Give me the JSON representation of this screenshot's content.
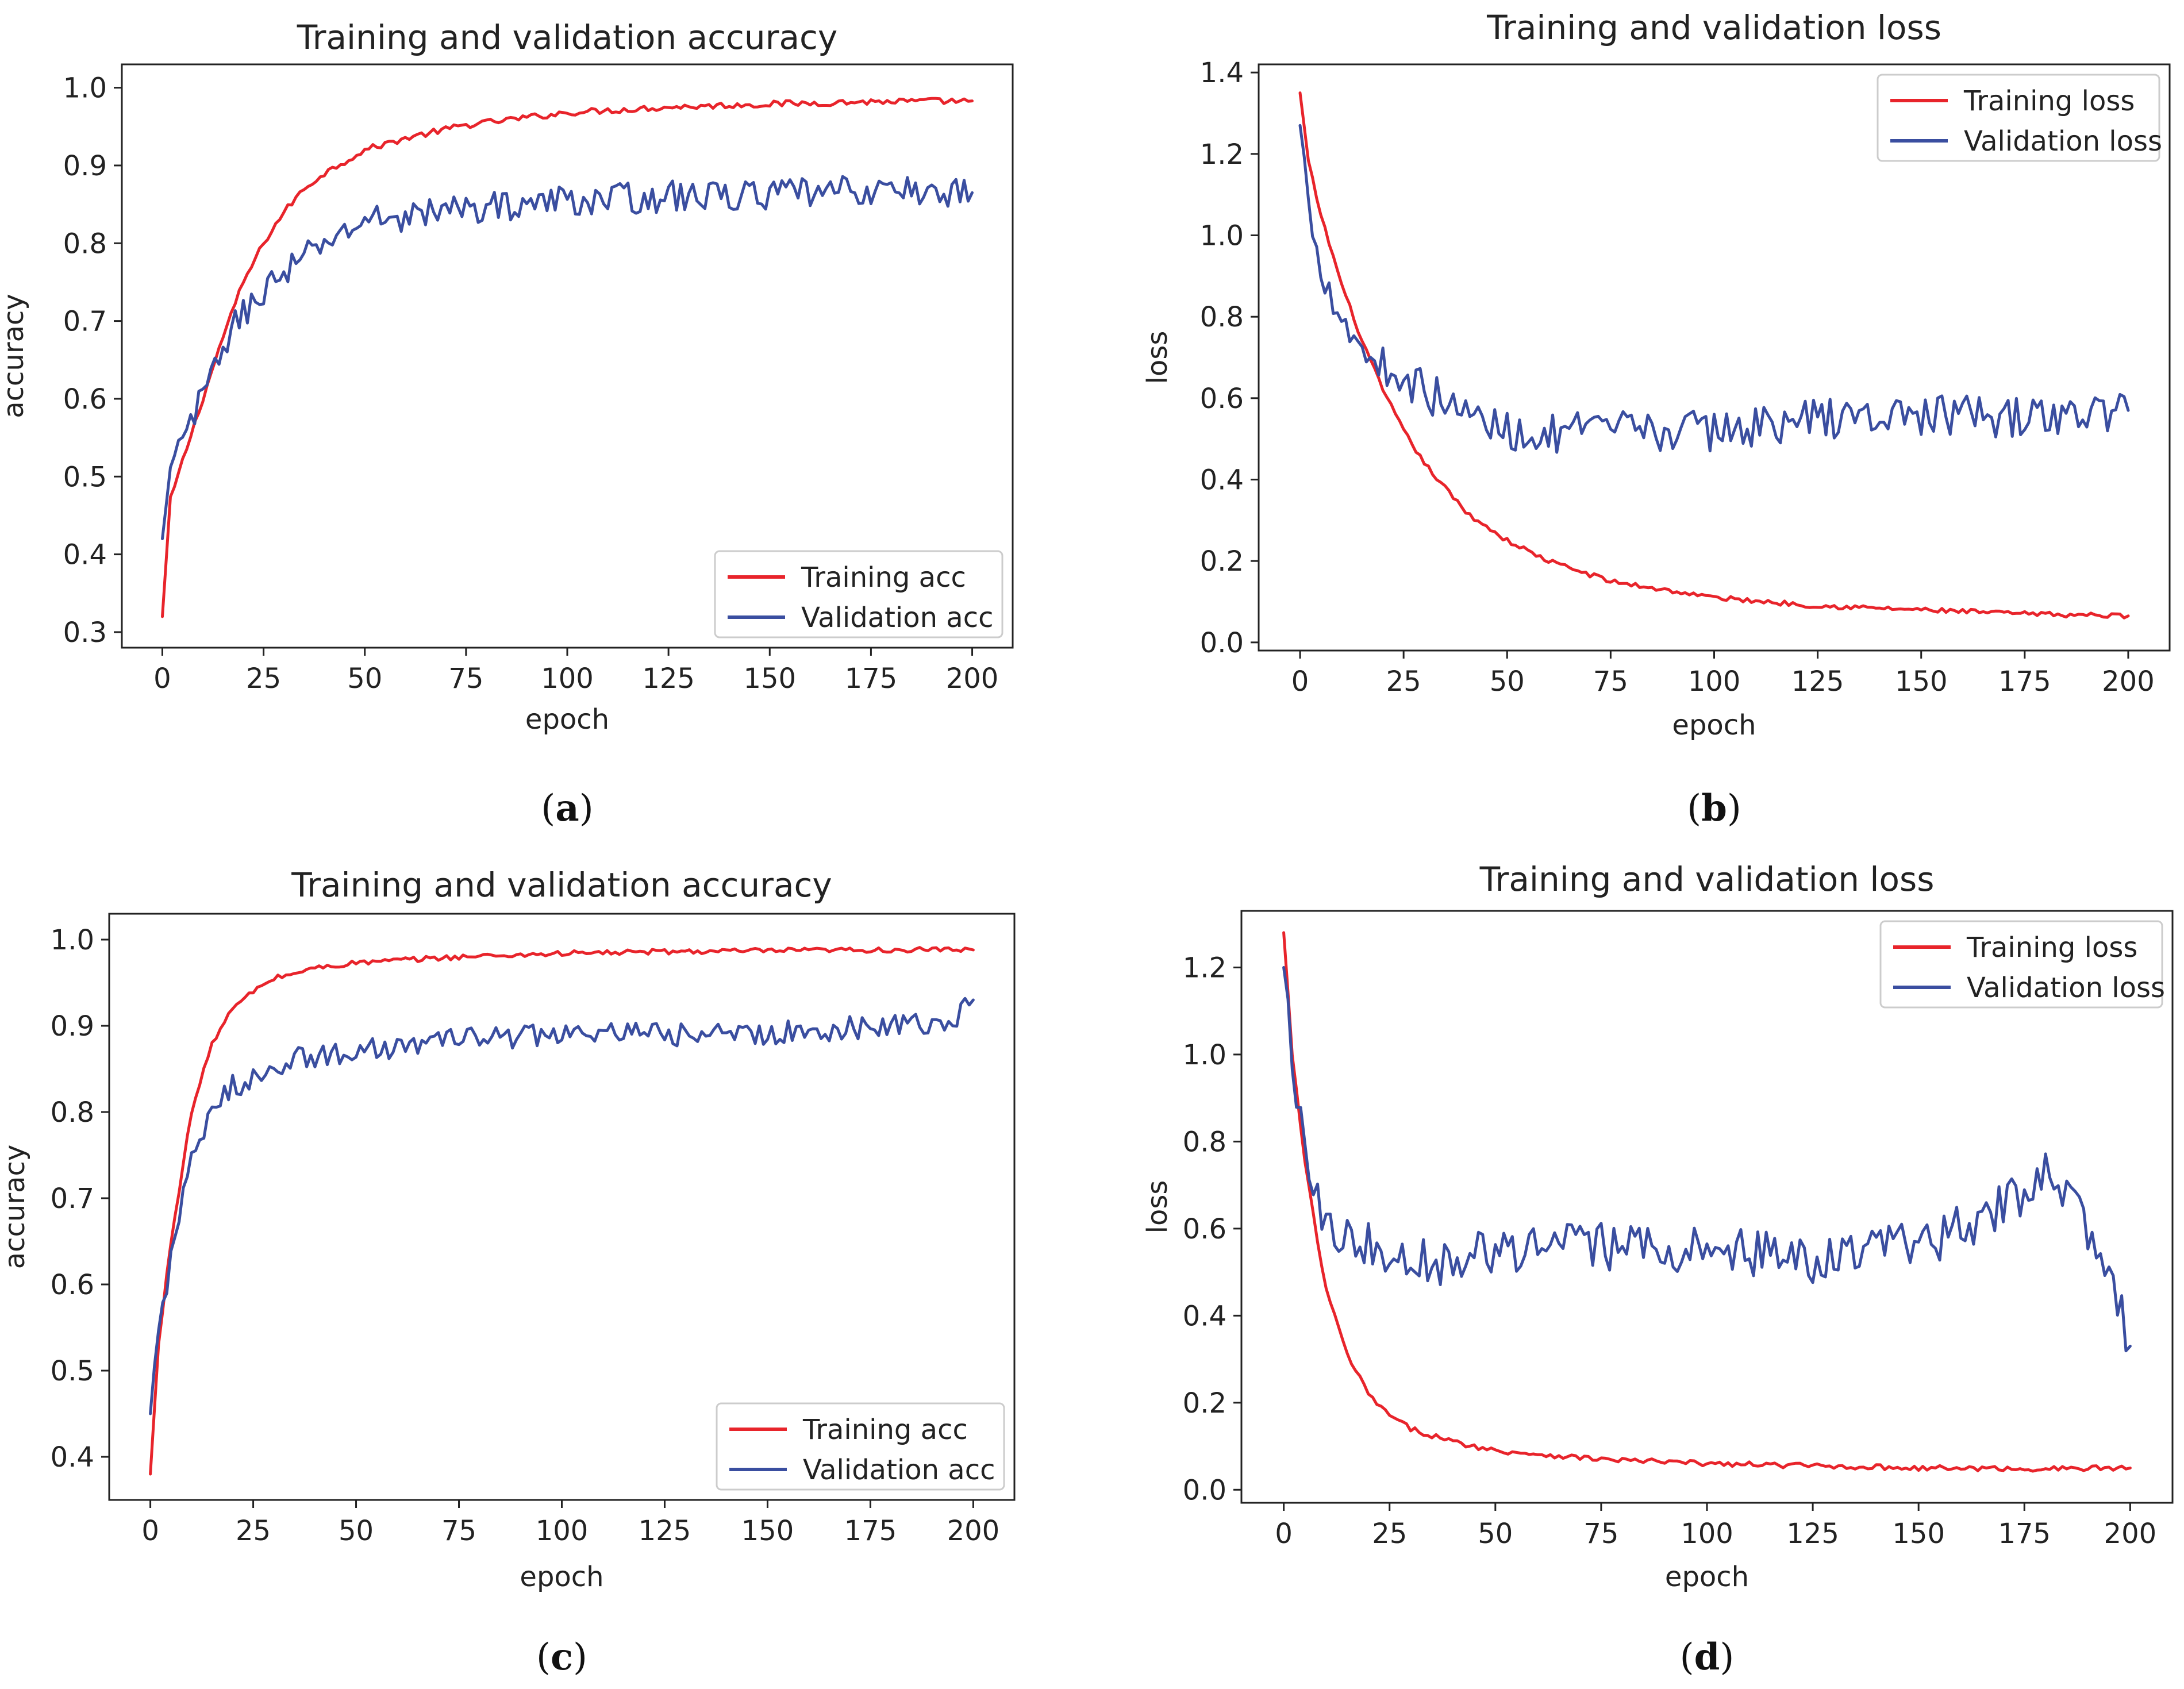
{
  "figure": {
    "colors": {
      "training": "#e8242b",
      "validation": "#3a4ea0"
    }
  },
  "chart_data": [
    {
      "type": "line",
      "panel": "(a)",
      "caption_letter": "a",
      "title": "Training and validation accuracy",
      "xlabel": "epoch",
      "ylabel": "accuracy",
      "xlim": [
        -10,
        210
      ],
      "ylim": [
        0.28,
        1.03
      ],
      "xticks": [
        0,
        25,
        50,
        75,
        100,
        125,
        150,
        175,
        200
      ],
      "xtick_labels": [
        "0",
        "25",
        "50",
        "75",
        "100",
        "125",
        "150",
        "175",
        "200"
      ],
      "yticks": [
        0.3,
        0.4,
        0.5,
        0.6,
        0.7,
        0.8,
        0.9,
        1.0
      ],
      "ytick_labels": [
        "0.3",
        "0.4",
        "0.5",
        "0.6",
        "0.7",
        "0.8",
        "0.9",
        "1.0"
      ],
      "legend_position": "lower-right",
      "series": [
        {
          "name": "Training acc",
          "color_key": "training",
          "x": [
            0,
            2,
            5,
            10,
            15,
            20,
            25,
            30,
            35,
            40,
            50,
            60,
            75,
            100,
            125,
            150,
            175,
            200
          ],
          "y": [
            0.32,
            0.47,
            0.52,
            0.6,
            0.68,
            0.75,
            0.8,
            0.84,
            0.87,
            0.89,
            0.92,
            0.935,
            0.952,
            0.968,
            0.975,
            0.979,
            0.982,
            0.983
          ],
          "noise": 0.004
        },
        {
          "name": "Validation acc",
          "color_key": "validation",
          "x": [
            0,
            2,
            5,
            10,
            15,
            20,
            25,
            30,
            40,
            50,
            60,
            75,
            100,
            125,
            150,
            175,
            200
          ],
          "y": [
            0.42,
            0.5,
            0.55,
            0.6,
            0.67,
            0.71,
            0.74,
            0.76,
            0.8,
            0.83,
            0.835,
            0.845,
            0.855,
            0.86,
            0.862,
            0.868,
            0.865
          ],
          "noise": 0.02
        }
      ]
    },
    {
      "type": "line",
      "panel": "(b)",
      "caption_letter": "b",
      "title": "Training and validation loss",
      "xlabel": "epoch",
      "ylabel": "loss",
      "xlim": [
        -10,
        210
      ],
      "ylim": [
        -0.02,
        1.42
      ],
      "xticks": [
        0,
        25,
        50,
        75,
        100,
        125,
        150,
        175,
        200
      ],
      "xtick_labels": [
        "0",
        "25",
        "50",
        "75",
        "100",
        "125",
        "150",
        "175",
        "200"
      ],
      "yticks": [
        0.0,
        0.2,
        0.4,
        0.6,
        0.8,
        1.0,
        1.2,
        1.4
      ],
      "ytick_labels": [
        "0.0",
        "0.2",
        "0.4",
        "0.6",
        "0.8",
        "1.0",
        "1.2",
        "1.4"
      ],
      "legend_position": "upper-right",
      "series": [
        {
          "name": "Training loss",
          "color_key": "training",
          "x": [
            0,
            2,
            5,
            10,
            15,
            20,
            25,
            30,
            40,
            50,
            60,
            75,
            100,
            125,
            150,
            175,
            200
          ],
          "y": [
            1.35,
            1.18,
            1.05,
            0.88,
            0.74,
            0.62,
            0.52,
            0.44,
            0.32,
            0.25,
            0.2,
            0.15,
            0.11,
            0.09,
            0.08,
            0.07,
            0.065
          ],
          "noise": 0.006
        },
        {
          "name": "Validation loss",
          "color_key": "validation",
          "x": [
            0,
            2,
            5,
            10,
            15,
            20,
            25,
            30,
            40,
            50,
            60,
            75,
            100,
            125,
            150,
            175,
            200
          ],
          "y": [
            1.27,
            1.08,
            0.93,
            0.8,
            0.72,
            0.68,
            0.65,
            0.62,
            0.56,
            0.52,
            0.51,
            0.52,
            0.52,
            0.55,
            0.56,
            0.55,
            0.57
          ],
          "noise": 0.05
        }
      ]
    },
    {
      "type": "line",
      "panel": "(c)",
      "caption_letter": "c",
      "title": "Training and validation accuracy",
      "xlabel": "epoch",
      "ylabel": "accuracy",
      "xlim": [
        -10,
        210
      ],
      "ylim": [
        0.35,
        1.03
      ],
      "xticks": [
        0,
        25,
        50,
        75,
        100,
        125,
        150,
        175,
        200
      ],
      "xtick_labels": [
        "0",
        "25",
        "50",
        "75",
        "100",
        "125",
        "150",
        "175",
        "200"
      ],
      "yticks": [
        0.4,
        0.5,
        0.6,
        0.7,
        0.8,
        0.9,
        1.0
      ],
      "ytick_labels": [
        "0.4",
        "0.5",
        "0.6",
        "0.7",
        "0.8",
        "0.9",
        "1.0"
      ],
      "legend_position": "lower-right",
      "series": [
        {
          "name": "Training acc",
          "color_key": "training",
          "x": [
            0,
            2,
            5,
            8,
            10,
            15,
            20,
            25,
            30,
            40,
            50,
            75,
            100,
            125,
            150,
            175,
            200
          ],
          "y": [
            0.38,
            0.53,
            0.65,
            0.74,
            0.8,
            0.88,
            0.92,
            0.94,
            0.955,
            0.967,
            0.973,
            0.98,
            0.984,
            0.986,
            0.987,
            0.988,
            0.988
          ],
          "noise": 0.003
        },
        {
          "name": "Validation acc",
          "color_key": "validation",
          "x": [
            0,
            2,
            5,
            8,
            10,
            15,
            20,
            25,
            30,
            40,
            50,
            75,
            100,
            125,
            150,
            175,
            195,
            200
          ],
          "y": [
            0.45,
            0.55,
            0.63,
            0.7,
            0.74,
            0.8,
            0.83,
            0.84,
            0.855,
            0.865,
            0.87,
            0.885,
            0.89,
            0.89,
            0.89,
            0.9,
            0.905,
            0.93
          ],
          "noise": 0.014
        }
      ]
    },
    {
      "type": "line",
      "panel": "(d)",
      "caption_letter": "d",
      "title": "Training and validation loss",
      "xlabel": "epoch",
      "ylabel": "loss",
      "xlim": [
        -10,
        210
      ],
      "ylim": [
        -0.03,
        1.33
      ],
      "xticks": [
        0,
        25,
        50,
        75,
        100,
        125,
        150,
        175,
        200
      ],
      "xtick_labels": [
        "0",
        "25",
        "50",
        "75",
        "100",
        "125",
        "150",
        "175",
        "200"
      ],
      "yticks": [
        0.0,
        0.2,
        0.4,
        0.6,
        0.8,
        1.0,
        1.2
      ],
      "ytick_labels": [
        "0.0",
        "0.2",
        "0.4",
        "0.6",
        "0.8",
        "1.0",
        "1.2"
      ],
      "legend_position": "upper-right",
      "series": [
        {
          "name": "Training loss",
          "color_key": "training",
          "x": [
            0,
            2,
            5,
            8,
            10,
            12,
            15,
            20,
            25,
            30,
            40,
            50,
            75,
            100,
            125,
            150,
            175,
            200
          ],
          "y": [
            1.28,
            1.0,
            0.75,
            0.57,
            0.46,
            0.4,
            0.31,
            0.22,
            0.17,
            0.14,
            0.11,
            0.09,
            0.07,
            0.06,
            0.055,
            0.05,
            0.048,
            0.05
          ],
          "noise": 0.006
        },
        {
          "name": "Validation loss",
          "color_key": "validation",
          "x": [
            0,
            2,
            5,
            8,
            10,
            15,
            20,
            25,
            30,
            40,
            50,
            75,
            100,
            125,
            150,
            170,
            180,
            190,
            195,
            200
          ],
          "y": [
            1.2,
            1.0,
            0.8,
            0.67,
            0.63,
            0.58,
            0.56,
            0.55,
            0.54,
            0.52,
            0.55,
            0.56,
            0.55,
            0.53,
            0.56,
            0.65,
            0.72,
            0.6,
            0.5,
            0.33
          ],
          "noise": 0.055
        }
      ]
    }
  ]
}
